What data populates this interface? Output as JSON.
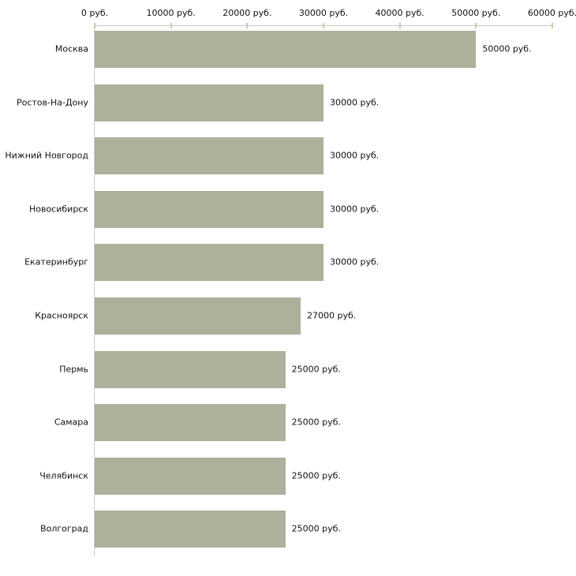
{
  "chart_data": {
    "type": "bar",
    "orientation": "horizontal",
    "title": "",
    "xlabel": "",
    "ylabel": "",
    "xlim": [
      0,
      60000
    ],
    "grid": false,
    "legend": false,
    "categories": [
      "Москва",
      "Ростов-На-Дону",
      "Нижний Новгород",
      "Новосибирск",
      "Екатеринбург",
      "Красноярск",
      "Пермь",
      "Самара",
      "Челябинск",
      "Волгоград"
    ],
    "values": [
      50000,
      30000,
      30000,
      30000,
      30000,
      27000,
      25000,
      25000,
      25000,
      25000
    ],
    "value_labels": [
      "50000 руб.",
      "30000 руб.",
      "30000 руб.",
      "30000 руб.",
      "30000 руб.",
      "27000 руб.",
      "25000 руб.",
      "25000 руб.",
      "25000 руб.",
      "25000 руб."
    ],
    "x_ticks": [
      {
        "value": 0,
        "label": "0 руб."
      },
      {
        "value": 10000,
        "label": "10000 руб."
      },
      {
        "value": 20000,
        "label": "20000 руб."
      },
      {
        "value": 30000,
        "label": "30000 руб."
      },
      {
        "value": 40000,
        "label": "40000 руб."
      },
      {
        "value": 50000,
        "label": "50000 руб."
      },
      {
        "value": 60000,
        "label": "60000 руб."
      }
    ],
    "colors": {
      "bar": "#abb19b",
      "axis_line": "#c6c6c6",
      "y_axis_line": "#cccccc",
      "tick": "#c9c9a2",
      "text": "#111111",
      "background": "#ffffff"
    }
  }
}
